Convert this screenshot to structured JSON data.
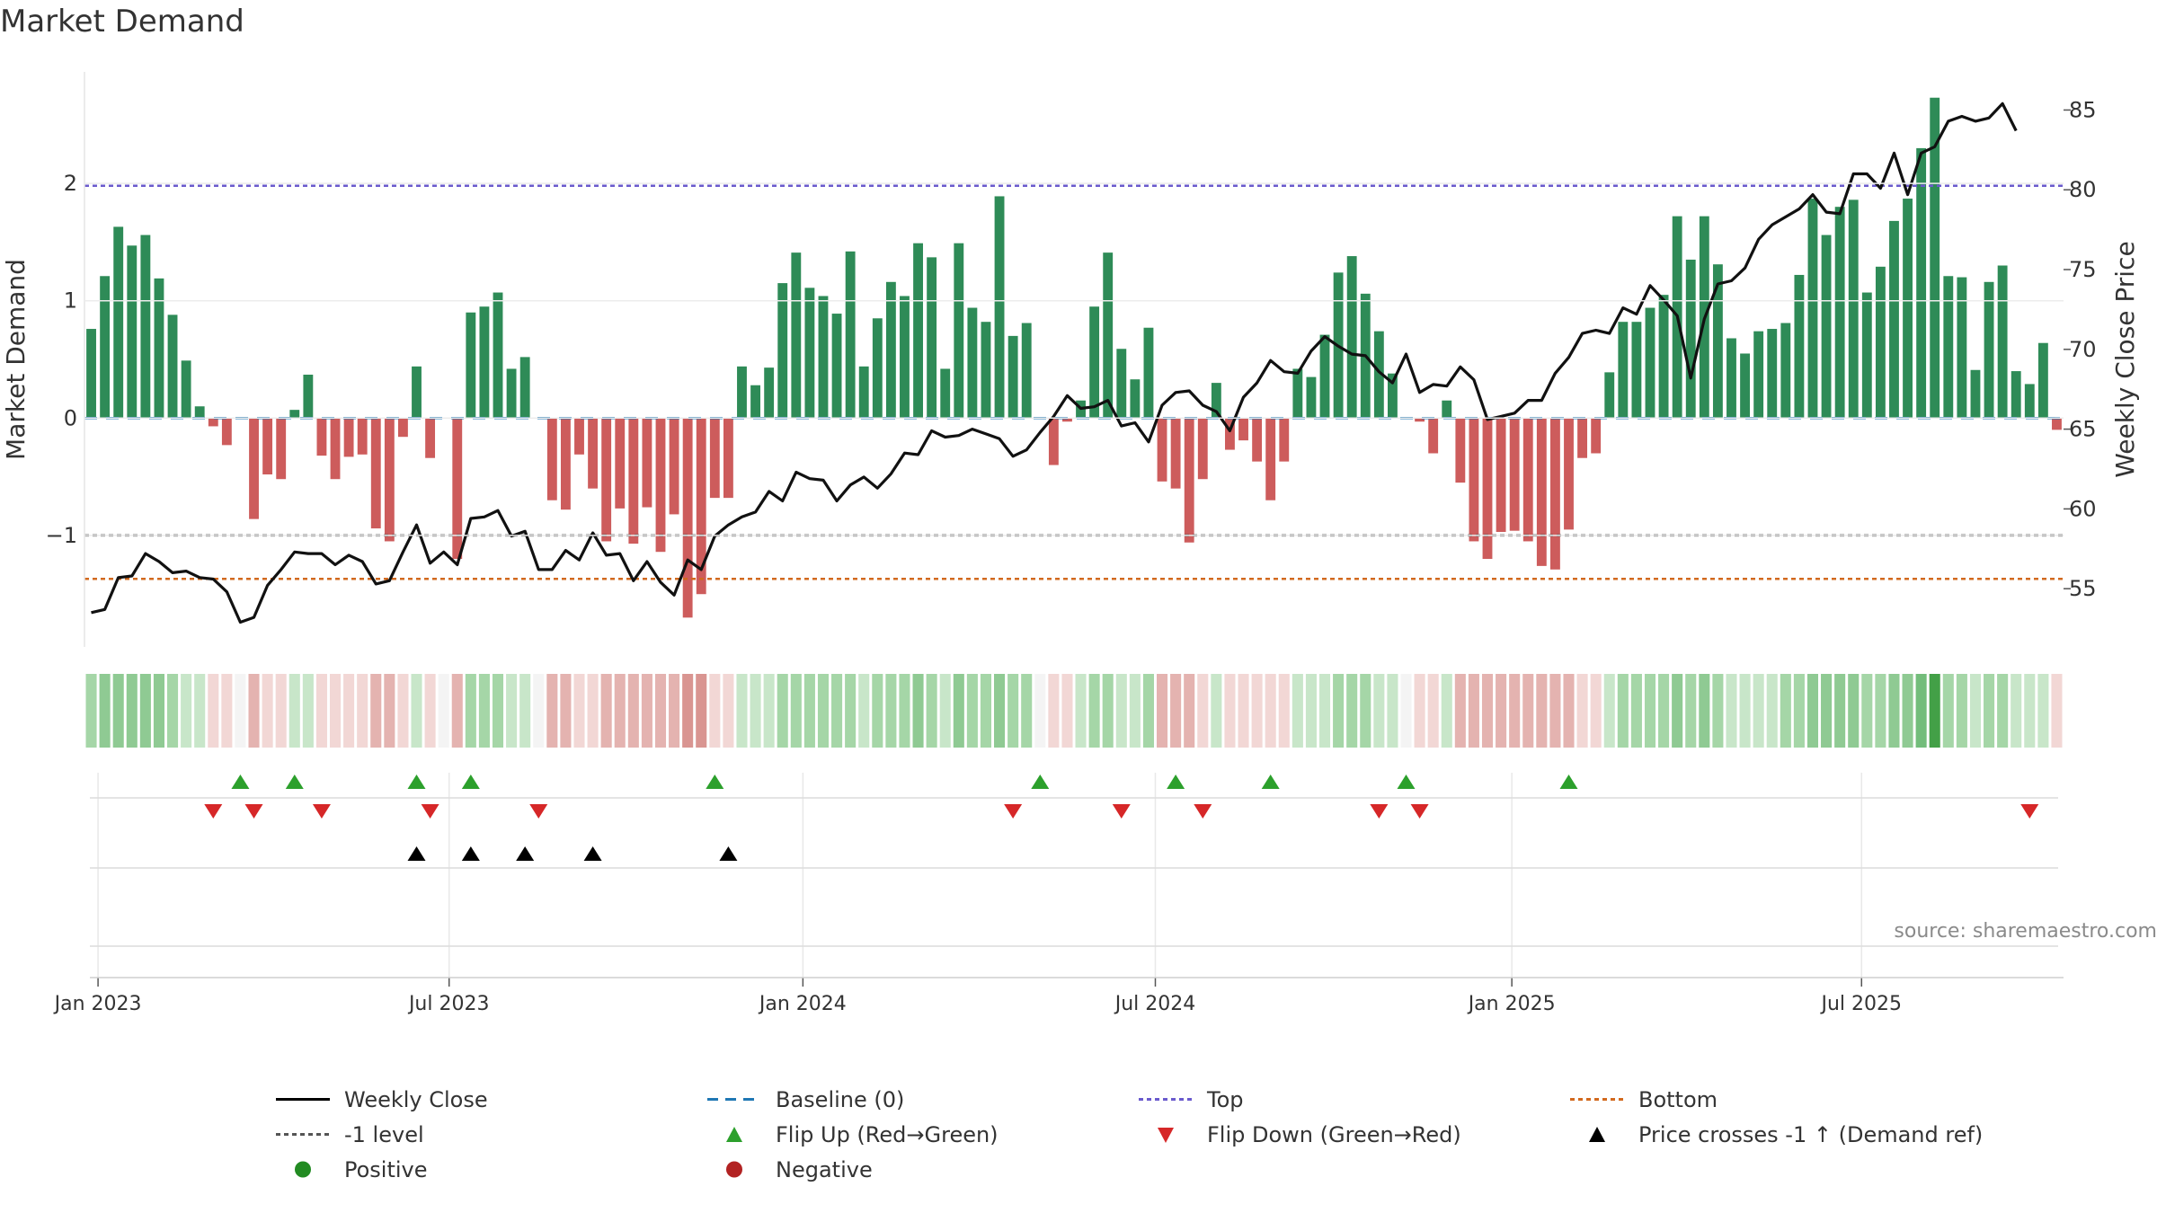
{
  "title": "Market Demand",
  "source": "source: sharemaestro.com",
  "colors": {
    "positive_bar": "#2e8b57",
    "negative_bar": "#cd5c5c",
    "price_line": "#111111",
    "baseline": "#1f77b4",
    "top": "#6a5acd",
    "bottom": "#d2691e",
    "level_minus1": "#555555",
    "flip_up": "#2ca02c",
    "flip_down": "#d62728",
    "cross": "#000000",
    "positive_dot": "#228b22",
    "negative_dot": "#b22222"
  },
  "legend": [
    {
      "label": "Weekly Close",
      "kind": "line-solid",
      "color": "#000000"
    },
    {
      "label": "Baseline (0)",
      "kind": "line-dash",
      "color": "#1f77b4"
    },
    {
      "label": "Top",
      "kind": "line-dot",
      "color": "#6a5acd"
    },
    {
      "label": "Bottom",
      "kind": "line-dot",
      "color": "#d2691e"
    },
    {
      "label": "-1 level",
      "kind": "line-dot",
      "color": "#555555"
    },
    {
      "label": "Flip Up (Red→Green)",
      "kind": "tri-up",
      "color": "#2ca02c"
    },
    {
      "label": "Flip Down (Green→Red)",
      "kind": "tri-down",
      "color": "#d62728"
    },
    {
      "label": "Price crosses -1 ↑ (Demand ref)",
      "kind": "tri-up",
      "color": "#000000"
    },
    {
      "label": "Positive",
      "kind": "dot",
      "color": "#228b22"
    },
    {
      "label": "Negative",
      "kind": "dot",
      "color": "#b22222"
    }
  ],
  "chart_data": {
    "type": "bar",
    "title": "Market Demand",
    "ylabel": "Market Demand",
    "y2label": "Weekly Close Price",
    "ylim": [
      -1.95,
      2.95
    ],
    "y2lim": [
      51.35,
      87.39
    ],
    "yticks": [
      2,
      1,
      0,
      -1
    ],
    "ytick_labels": [
      "2",
      "1",
      "0",
      "−1"
    ],
    "y2ticks": [
      85,
      80,
      75,
      70,
      65,
      60,
      55
    ],
    "x_start": "2022-12-26",
    "x_step_weeks": 1,
    "x_ticks": [
      {
        "label": "Jan 2023",
        "week": 1
      },
      {
        "label": "Jul 2023",
        "week": 26.9
      },
      {
        "label": "Jan 2024",
        "week": 53
      },
      {
        "label": "Jul 2024",
        "week": 79
      },
      {
        "label": "Jan 2025",
        "week": 105.3
      },
      {
        "label": "Jul 2025",
        "week": 131.1
      }
    ],
    "reference_lines": {
      "baseline": 0,
      "top": 1.98,
      "level_minus1": -1.0,
      "bottom": -1.37
    },
    "demand": [
      0.76,
      1.21,
      1.63,
      1.47,
      1.56,
      1.19,
      0.88,
      0.49,
      0.1,
      -0.07,
      -0.23,
      0,
      -0.86,
      -0.48,
      -0.52,
      0.07,
      0.37,
      -0.32,
      -0.52,
      -0.33,
      -0.31,
      -0.94,
      -1.05,
      -0.16,
      0.44,
      -0.34,
      0,
      -1.2,
      0.9,
      0.95,
      1.07,
      0.42,
      0.52,
      0,
      -0.7,
      -0.78,
      -0.31,
      -0.6,
      -1.05,
      -0.77,
      -1.07,
      -0.76,
      -1.14,
      -0.82,
      -1.7,
      -1.5,
      -0.68,
      -0.68,
      0.44,
      0.28,
      0.43,
      1.15,
      1.41,
      1.11,
      1.04,
      0.89,
      1.42,
      0.44,
      0.85,
      1.16,
      1.04,
      1.49,
      1.37,
      0.42,
      1.49,
      0.94,
      0.82,
      1.89,
      0.7,
      0.81,
      0,
      -0.4,
      -0.03,
      0.15,
      0.95,
      1.41,
      0.59,
      0.33,
      0.77,
      -0.54,
      -0.6,
      -1.06,
      -0.52,
      0.3,
      -0.27,
      -0.19,
      -0.37,
      -0.7,
      -0.37,
      0.42,
      0.35,
      0.71,
      1.24,
      1.38,
      1.06,
      0.74,
      0.38,
      0,
      -0.03,
      -0.3,
      0.15,
      -0.55,
      -1.05,
      -1.2,
      -0.97,
      -0.96,
      -1.05,
      -1.26,
      -1.29,
      -0.95,
      -0.34,
      -0.3,
      0.39,
      0.82,
      0.82,
      0.94,
      1.05,
      1.72,
      1.35,
      1.72,
      1.31,
      0.68,
      0.55,
      0.74,
      0.76,
      0.81,
      1.22,
      1.87,
      1.56,
      1.8,
      1.86,
      1.07,
      1.29,
      1.68,
      1.87,
      2.3,
      2.73,
      1.21,
      1.2,
      0.41,
      1.16,
      1.3,
      0.4,
      0.29,
      0.64,
      -0.1
    ],
    "close": [
      53.5,
      53.7,
      55.7,
      55.8,
      57.2,
      56.7,
      56,
      56.1,
      55.7,
      55.6,
      54.8,
      52.9,
      53.2,
      55.2,
      56.2,
      57.3,
      57.2,
      57.2,
      56.5,
      57.1,
      56.7,
      55.3,
      55.5,
      57.3,
      59,
      56.6,
      57.3,
      56.5,
      59.4,
      59.5,
      59.9,
      58.3,
      58.6,
      56.2,
      56.2,
      57.4,
      56.8,
      58.5,
      57.1,
      57.2,
      55.5,
      56.7,
      55.4,
      54.6,
      56.8,
      56.2,
      58.3,
      59,
      59.5,
      59.8,
      61.1,
      60.5,
      62.3,
      61.9,
      61.8,
      60.5,
      61.5,
      62,
      61.3,
      62.2,
      63.5,
      63.4,
      64.9,
      64.5,
      64.6,
      65,
      64.7,
      64.4,
      63.3,
      63.7,
      64.8,
      65.8,
      67.1,
      66.3,
      66.4,
      66.8,
      65.2,
      65.4,
      64.2,
      66.5,
      67.3,
      67.4,
      66.5,
      66.1,
      64.9,
      67,
      67.9,
      69.3,
      68.6,
      68.5,
      69.9,
      70.8,
      70.2,
      69.7,
      69.6,
      68.6,
      67.9,
      69.7,
      67.3,
      67.8,
      67.7,
      68.9,
      68.1,
      65.6,
      65.8,
      66,
      66.8,
      66.8,
      68.5,
      69.5,
      71,
      71.2,
      71,
      72.6,
      72.2,
      74,
      73.1,
      72.1,
      68.2,
      71.9,
      74.1,
      74.3,
      75.1,
      76.9,
      77.8,
      78.3,
      78.8,
      79.7,
      78.6,
      78.5,
      81,
      81,
      80.1,
      82.3,
      79.7,
      82.3,
      82.7,
      84.3,
      84.6,
      84.3,
      84.5,
      85.4,
      83.7
    ],
    "strength": [
      2,
      3,
      3,
      3,
      3,
      3,
      2,
      1,
      1,
      -1,
      -1,
      0,
      -2,
      -1,
      -1,
      1,
      1,
      -1,
      -1,
      -1,
      -1,
      -2,
      -2,
      -1,
      1,
      -1,
      0,
      -2,
      2,
      2,
      2,
      1,
      1,
      0,
      -2,
      -2,
      -1,
      -1,
      -2,
      -2,
      -2,
      -2,
      -2,
      -2,
      -3,
      -3,
      -1,
      -1,
      1,
      1,
      1,
      2,
      2,
      2,
      2,
      2,
      2,
      1,
      2,
      2,
      2,
      3,
      2,
      1,
      3,
      2,
      2,
      3,
      2,
      2,
      0,
      -1,
      -1,
      1,
      2,
      2,
      1,
      1,
      2,
      -2,
      -2,
      -2,
      -1,
      1,
      -1,
      -1,
      -1,
      -1,
      -1,
      1,
      1,
      1,
      2,
      2,
      2,
      1,
      1,
      0,
      -1,
      -1,
      1,
      -2,
      -2,
      -2,
      -2,
      -2,
      -2,
      -2,
      -2,
      -2,
      -1,
      -1,
      1,
      2,
      2,
      2,
      2,
      3,
      2,
      3,
      2,
      1,
      1,
      1,
      1,
      2,
      2,
      3,
      3,
      3,
      3,
      2,
      2,
      3,
      3,
      4,
      5,
      2,
      2,
      1,
      2,
      2,
      1,
      1,
      1,
      -1
    ],
    "flip_up_weeks": [
      11,
      15,
      24,
      28,
      46,
      70,
      80,
      87,
      97,
      109
    ],
    "flip_down_weeks": [
      9,
      12,
      17,
      25,
      33,
      68,
      76,
      82,
      95,
      98,
      143
    ],
    "cross_weeks": [
      24,
      28,
      32,
      37,
      47
    ]
  }
}
